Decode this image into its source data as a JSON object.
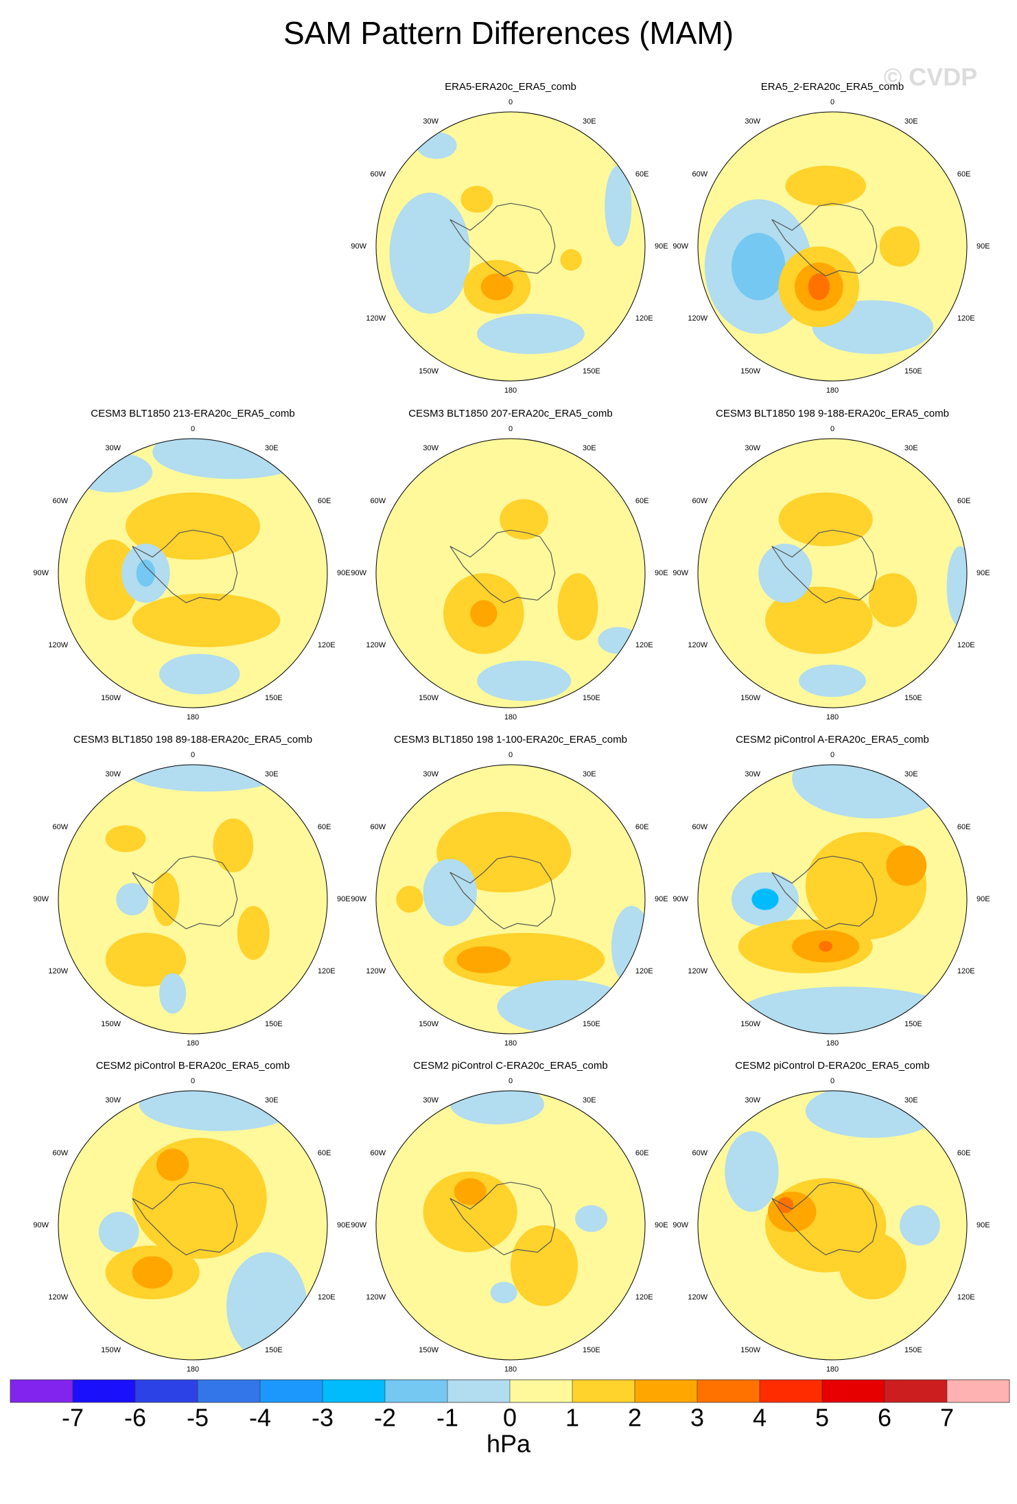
{
  "title": "SAM Pattern Differences (MAM)",
  "watermark": "© CVDP",
  "lon_labels": [
    "0",
    "30E",
    "60E",
    "90E",
    "120E",
    "150E",
    "180",
    "150W",
    "120W",
    "90W",
    "60W",
    "30W"
  ],
  "panels": [
    {
      "title": "ERA5-ERA20c_ERA5_comb"
    },
    {
      "title": "ERA5_2-ERA20c_ERA5_comb"
    },
    {
      "title": "CESM3 BLT1850 213-ERA20c_ERA5_comb"
    },
    {
      "title": "CESM3 BLT1850 207-ERA20c_ERA5_comb"
    },
    {
      "title": "CESM3 BLT1850 198 9-188-ERA20c_ERA5_comb"
    },
    {
      "title": "CESM3 BLT1850 198 89-188-ERA20c_ERA5_comb"
    },
    {
      "title": "CESM3 BLT1850 198 1-100-ERA20c_ERA5_comb"
    },
    {
      "title": "CESM2 piControl A-ERA20c_ERA5_comb"
    },
    {
      "title": "CESM2 piControl B-ERA20c_ERA5_comb"
    },
    {
      "title": "CESM2 piControl C-ERA20c_ERA5_comb"
    },
    {
      "title": "CESM2 piControl D-ERA20c_ERA5_comb"
    }
  ],
  "colorbar": {
    "colors": [
      "#8224ee",
      "#1a10fa",
      "#2d42e6",
      "#3376ea",
      "#1c98fc",
      "#00bcfc",
      "#74c8f2",
      "#b2dcef",
      "#fff99b",
      "#ffd22c",
      "#ffa600",
      "#ff7200",
      "#ff2c00",
      "#e60000",
      "#cc1e1e",
      "#ffb2b2"
    ],
    "ticks": [
      -7,
      -6,
      -5,
      -4,
      -3,
      -2,
      -1,
      0,
      1,
      2,
      3,
      4,
      5,
      6,
      7
    ],
    "label": "hPa"
  }
}
